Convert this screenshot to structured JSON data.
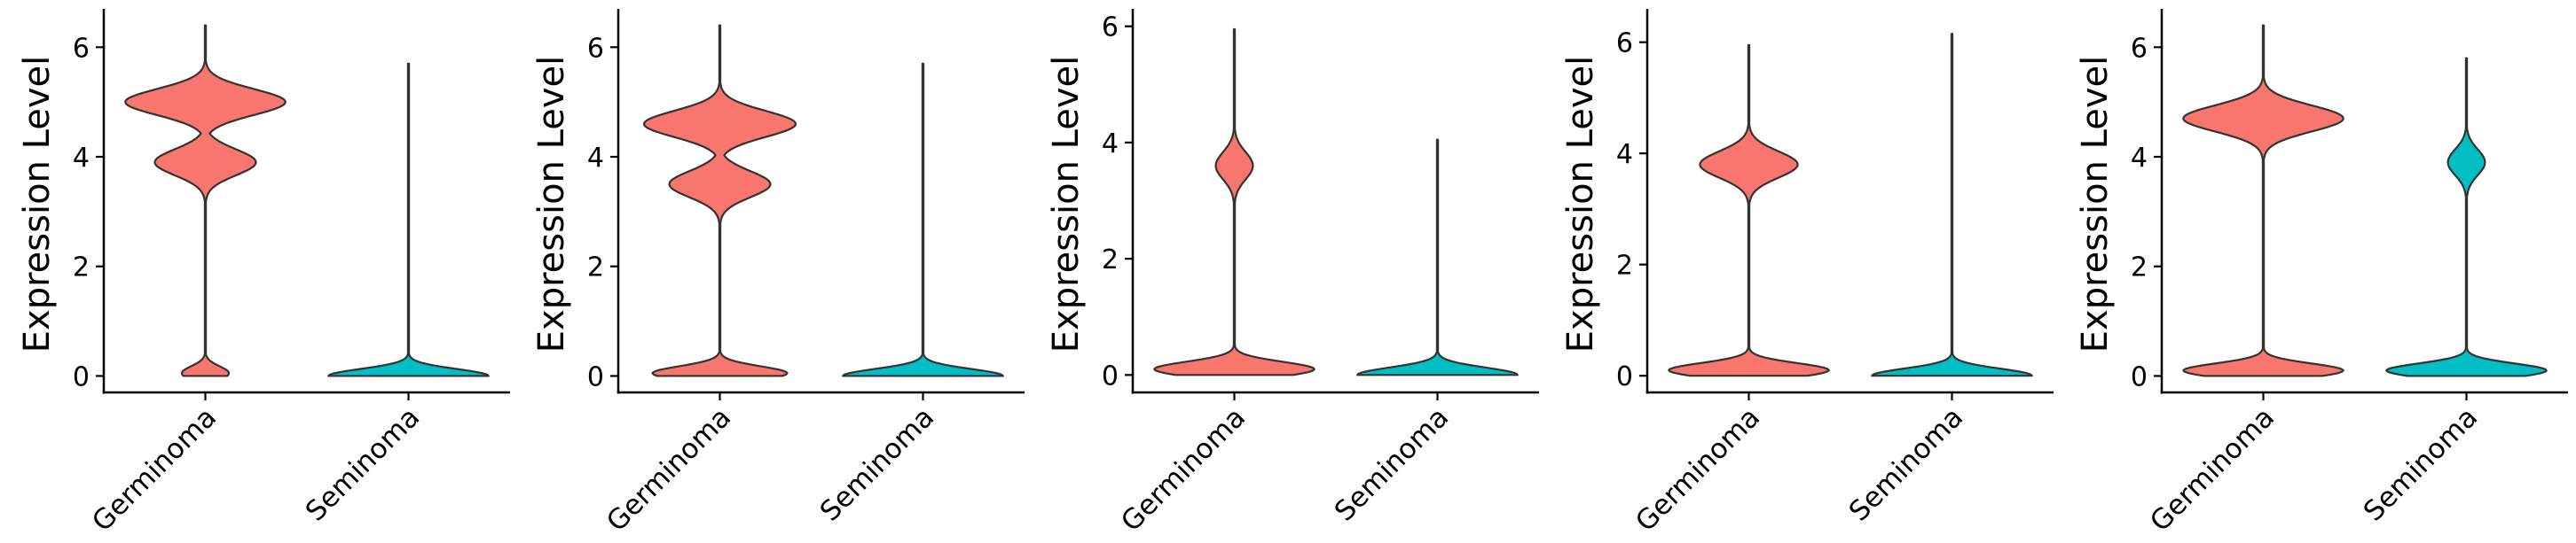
{
  "chart_data": [
    {
      "type": "violin",
      "ylabel": "Expression Level",
      "categories": [
        "Germinoma",
        "Seminoma"
      ],
      "yticks": [
        0,
        2,
        4,
        6
      ],
      "ylim": [
        -0.3,
        6.7
      ],
      "colors": {
        "Germinoma": "#F8766D",
        "Seminoma": "#00BFC4"
      },
      "series": [
        {
          "name": "Germinoma",
          "range": [
            0,
            6.4
          ],
          "peaks": [
            {
              "y": 5.0,
              "width": 0.95
            },
            {
              "y": 3.9,
              "width": 0.6
            },
            {
              "y": 0.05,
              "width": 0.28
            }
          ]
        },
        {
          "name": "Seminoma",
          "range": [
            0,
            5.7
          ],
          "peaks": [
            {
              "y": 0.0,
              "width": 0.95
            }
          ]
        }
      ]
    },
    {
      "type": "violin",
      "ylabel": "Expression Level",
      "categories": [
        "Germinoma",
        "Seminoma"
      ],
      "yticks": [
        0,
        2,
        4,
        6
      ],
      "ylim": [
        -0.3,
        6.7
      ],
      "colors": {
        "Germinoma": "#F8766D",
        "Seminoma": "#00BFC4"
      },
      "series": [
        {
          "name": "Germinoma",
          "range": [
            0,
            6.4
          ],
          "peaks": [
            {
              "y": 4.6,
              "width": 0.9
            },
            {
              "y": 3.5,
              "width": 0.6
            },
            {
              "y": 0.05,
              "width": 0.8
            }
          ]
        },
        {
          "name": "Seminoma",
          "range": [
            0,
            5.7
          ],
          "peaks": [
            {
              "y": 0.0,
              "width": 0.95
            }
          ]
        }
      ]
    },
    {
      "type": "violin",
      "ylabel": "Expression Level",
      "categories": [
        "Germinoma",
        "Seminoma"
      ],
      "yticks": [
        0,
        2,
        4,
        6
      ],
      "ylim": [
        -0.3,
        6.3
      ],
      "colors": {
        "Germinoma": "#F8766D",
        "Seminoma": "#00BFC4"
      },
      "series": [
        {
          "name": "Germinoma",
          "range": [
            0,
            5.95
          ],
          "peaks": [
            {
              "y": 3.6,
              "width": 0.22
            },
            {
              "y": 0.1,
              "width": 0.95
            }
          ]
        },
        {
          "name": "Seminoma",
          "range": [
            0,
            4.05
          ],
          "peaks": [
            {
              "y": 0.0,
              "width": 0.95
            }
          ]
        }
      ]
    },
    {
      "type": "violin",
      "ylabel": "Expression Level",
      "categories": [
        "Germinoma",
        "Seminoma"
      ],
      "yticks": [
        0,
        2,
        4,
        6
      ],
      "ylim": [
        -0.3,
        6.6
      ],
      "colors": {
        "Germinoma": "#F8766D",
        "Seminoma": "#00BFC4"
      },
      "series": [
        {
          "name": "Germinoma",
          "range": [
            0,
            5.95
          ],
          "peaks": [
            {
              "y": 3.8,
              "width": 0.58
            },
            {
              "y": 0.1,
              "width": 0.95
            }
          ]
        },
        {
          "name": "Seminoma",
          "range": [
            0,
            6.15
          ],
          "peaks": [
            {
              "y": 0.0,
              "width": 0.95
            }
          ]
        }
      ]
    },
    {
      "type": "violin",
      "ylabel": "Expression Level",
      "categories": [
        "Germinoma",
        "Seminoma"
      ],
      "yticks": [
        0,
        2,
        4,
        6
      ],
      "ylim": [
        -0.3,
        6.7
      ],
      "colors": {
        "Germinoma": "#F8766D",
        "Seminoma": "#00BFC4"
      },
      "series": [
        {
          "name": "Germinoma",
          "range": [
            0,
            6.4
          ],
          "peaks": [
            {
              "y": 4.7,
              "width": 0.95
            },
            {
              "y": 0.1,
              "width": 0.95
            }
          ]
        },
        {
          "name": "Seminoma",
          "range": [
            0,
            5.8
          ],
          "peaks": [
            {
              "y": 3.9,
              "width": 0.22
            },
            {
              "y": 0.1,
              "width": 0.95
            }
          ]
        }
      ]
    }
  ]
}
